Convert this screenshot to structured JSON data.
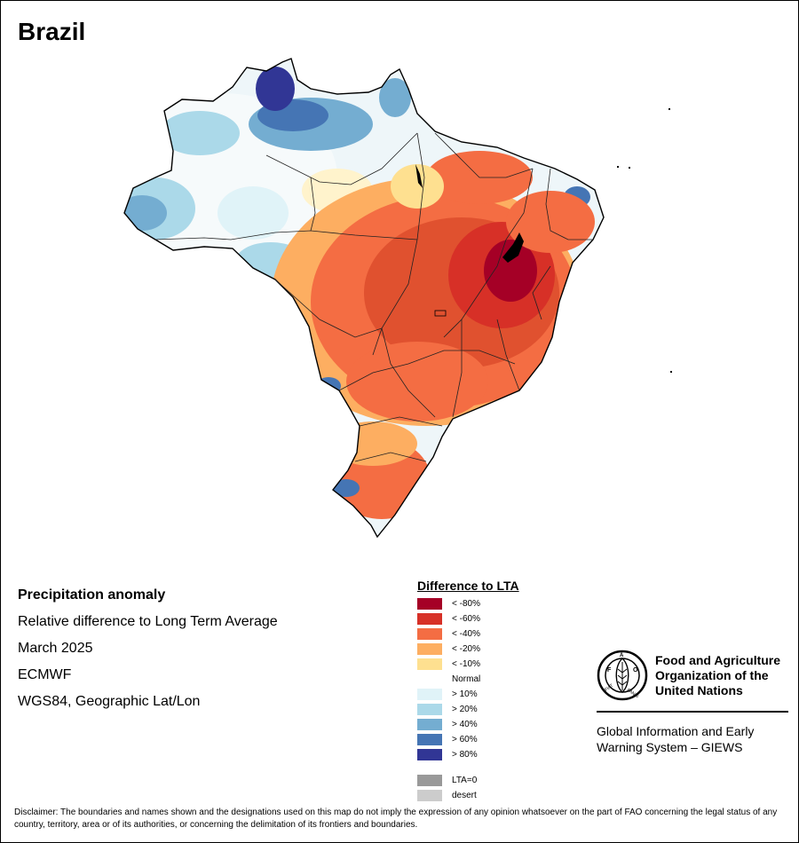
{
  "title": "Brazil",
  "info": {
    "line1": "Precipitation anomaly",
    "line2": "Relative difference to Long Term Average",
    "line3": "March 2025",
    "line4": "ECMWF",
    "line5": "WGS84, Geographic Lat/Lon"
  },
  "legend": {
    "title": "Difference to LTA",
    "items": [
      {
        "label": "< -80%",
        "color": "#a50026"
      },
      {
        "label": "< -60%",
        "color": "#d73027"
      },
      {
        "label": "< -40%",
        "color": "#f46d43"
      },
      {
        "label": "< -20%",
        "color": "#fdae61"
      },
      {
        "label": "< -10%",
        "color": "#fee090"
      },
      {
        "label": "Normal",
        "color": "#ffffff"
      },
      {
        "label": "> 10%",
        "color": "#e0f3f8"
      },
      {
        "label": "> 20%",
        "color": "#abd9e9"
      },
      {
        "label": "> 40%",
        "color": "#74add1"
      },
      {
        "label": "> 60%",
        "color": "#4575b4"
      },
      {
        "label": "> 80%",
        "color": "#313695"
      }
    ],
    "extra": [
      {
        "label": "LTA=0",
        "color": "#999999"
      },
      {
        "label": "desert",
        "color": "#cccccc"
      }
    ]
  },
  "fao": {
    "name_line1": "Food and Agriculture",
    "name_line2": "Organization of the",
    "name_line3": "United Nations",
    "logo_text": "FAO",
    "logo_ring_text": "FIAT PANIS",
    "giews_line1": "Global Information and Early",
    "giews_line2": "Warning System – GIEWS"
  },
  "disclaimer": "Disclaimer: The boundaries and names shown and the designations used on this map do not imply the expression of any opinion whatsoever on the part of FAO concerning the legal status of any country, territory, area or of its authorities, or concerning the delimitation of its frontiers and boundaries."
}
